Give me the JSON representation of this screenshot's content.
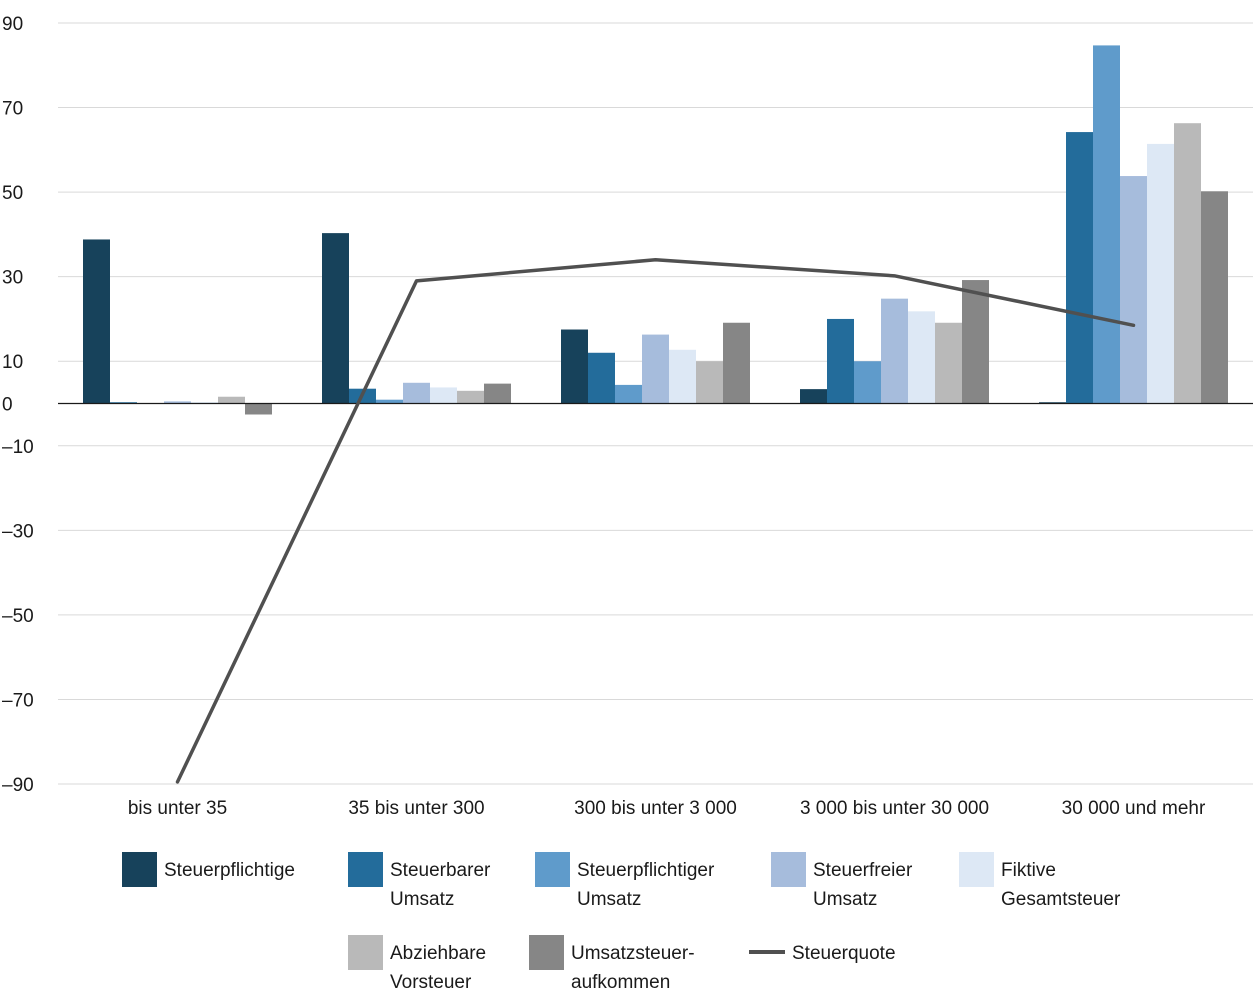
{
  "chart_data": {
    "type": "bar",
    "categories": [
      "bis unter 35",
      "35 bis unter 300",
      "300 bis unter 3 000",
      "3 000 bis unter 30 000",
      "30 000 und mehr"
    ],
    "ylim": [
      -90,
      90
    ],
    "yticks": [
      90,
      70,
      50,
      30,
      10,
      0,
      -10,
      -30,
      -50,
      -70,
      -90
    ],
    "ytick_labels": [
      "90",
      "70",
      "50",
      "30",
      "10",
      "0",
      "–10",
      "–30",
      "–50",
      "–70",
      "–90"
    ],
    "grid": true,
    "legend_position": "bottom",
    "series": [
      {
        "name": "Steuerpflichtige",
        "name_lines": [
          "Steuerpflichtige"
        ],
        "type": "bar",
        "color": "#17425b",
        "values": [
          38.8,
          40.3,
          17.5,
          3.4,
          0.3
        ]
      },
      {
        "name": "Steuerbarer Umsatz",
        "name_lines": [
          "Steuerbarer",
          "Umsatz"
        ],
        "type": "bar",
        "color": "#236c9b",
        "values": [
          0.3,
          3.5,
          12.0,
          20.0,
          64.2
        ]
      },
      {
        "name": "Steuerpflichtiger Umsatz",
        "name_lines": [
          "Steuerpflichtiger",
          "Umsatz"
        ],
        "type": "bar",
        "color": "#5f9bcb",
        "values": [
          0.1,
          0.9,
          4.4,
          10.0,
          84.7
        ]
      },
      {
        "name": "Steuerfreier Umsatz",
        "name_lines": [
          "Steuerfreier",
          "Umsatz"
        ],
        "type": "bar",
        "color": "#a6bcdc",
        "values": [
          0.5,
          4.9,
          16.3,
          24.8,
          53.8
        ]
      },
      {
        "name": "Fiktive Gesamtsteuer",
        "name_lines": [
          "Fiktive",
          "Gesamtsteuer"
        ],
        "type": "bar",
        "color": "#dde8f5",
        "values": [
          0.3,
          3.8,
          12.7,
          21.8,
          61.4
        ]
      },
      {
        "name": "Abziehbare Vorsteuer",
        "name_lines": [
          "Abziehbare",
          "Vorsteuer"
        ],
        "type": "bar",
        "color": "#b9b9b9",
        "values": [
          1.6,
          3.0,
          10.0,
          19.1,
          66.3
        ]
      },
      {
        "name": "Umsatzsteueraufkommen",
        "name_lines": [
          "Umsatzsteuer-",
          "aufkommen"
        ],
        "type": "bar",
        "color": "#868686",
        "values": [
          -2.6,
          4.7,
          19.1,
          29.2,
          50.2
        ]
      },
      {
        "name": "Steuerquote",
        "name_lines": [
          "Steuerquote"
        ],
        "type": "line",
        "color": "#505050",
        "values": [
          -89.5,
          29.0,
          34.0,
          30.2,
          18.5
        ]
      }
    ]
  }
}
